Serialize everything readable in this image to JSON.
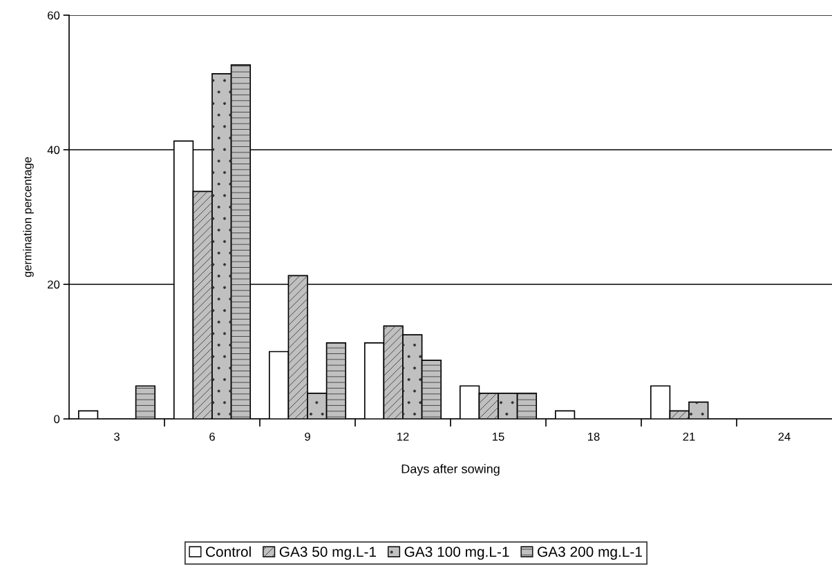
{
  "chart_data": {
    "type": "bar",
    "xlabel": "Days after sowing",
    "ylabel": "germination percentage",
    "categories": [
      "3",
      "6",
      "9",
      "12",
      "15",
      "18",
      "21",
      "24"
    ],
    "series": [
      {
        "name": "Control",
        "color": "#ffffff",
        "values": [
          1.2,
          41.3,
          10.0,
          11.3,
          4.9,
          1.2,
          4.9,
          0
        ]
      },
      {
        "name": "GA3 50 mg.L-1",
        "color": "#c0c0c0",
        "values": [
          0,
          33.8,
          21.3,
          13.8,
          3.8,
          0,
          1.2,
          0
        ]
      },
      {
        "name": "GA3 100 mg.L-1",
        "color": "#c0c0c0",
        "values": [
          0,
          51.3,
          3.8,
          12.5,
          3.8,
          0,
          2.5,
          0
        ]
      },
      {
        "name": "GA3 200 mg.L-1",
        "color": "#c0c0c0",
        "values": [
          4.9,
          52.6,
          11.3,
          8.7,
          3.8,
          0,
          0,
          0
        ]
      }
    ],
    "ylim": [
      0,
      60
    ],
    "yticks": [
      0,
      20,
      40,
      60
    ],
    "grid": "y",
    "legend": "bottom"
  }
}
